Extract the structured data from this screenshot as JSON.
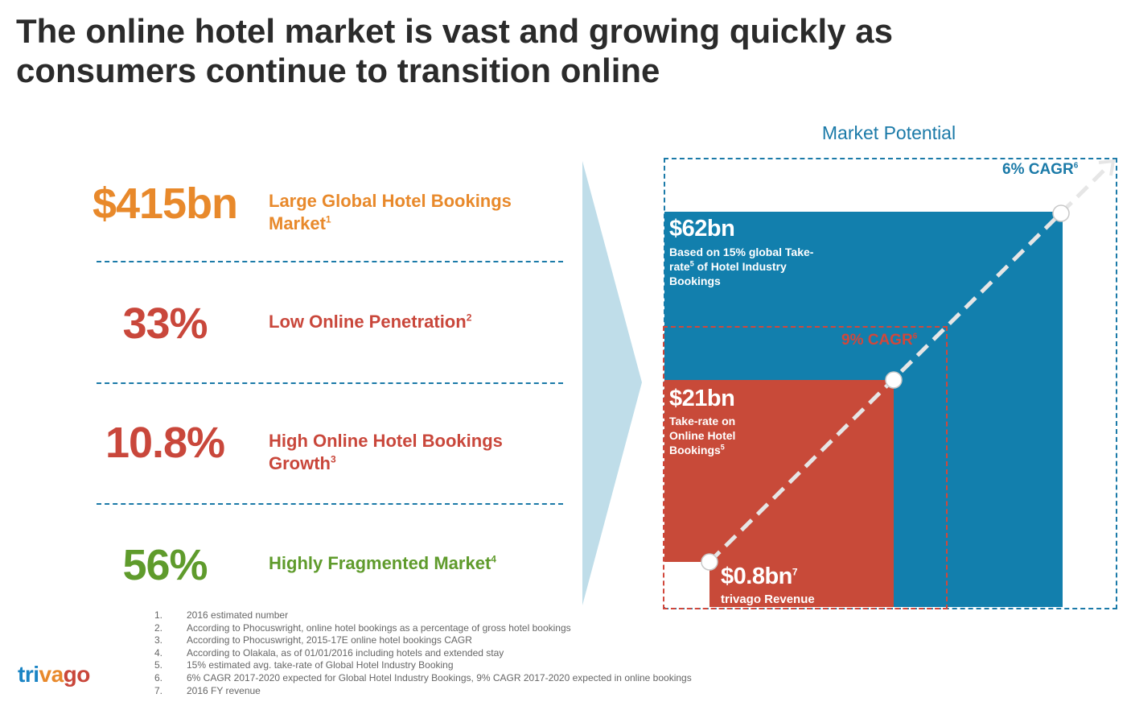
{
  "title": "The online hotel market is vast and growing quickly as consumers continue to transition online",
  "stats": [
    {
      "value": "$415bn",
      "label": "Large Global Hotel Bookings Market",
      "note": "1"
    },
    {
      "value": "33%",
      "label": "Low Online Penetration",
      "note": "2"
    },
    {
      "value": "10.8%",
      "label": "High Online Hotel Bookings Growth",
      "note": "3"
    },
    {
      "value": "56%",
      "label": "Highly Fragmented Market",
      "note": "4"
    }
  ],
  "market": {
    "title": "Market Potential",
    "outer_cagr": "6% CAGR",
    "outer_cagr_note": "6",
    "inner_cagr": "9% CAGR",
    "inner_cagr_note": "6",
    "blue_value": "$62bn",
    "blue_desc_a": "Based on 15% global Take-",
    "blue_desc_b": "rate",
    "blue_desc_b_note": "5",
    "blue_desc_c": " of Hotel Industry",
    "blue_desc_d": "Bookings",
    "red_value": "$21bn",
    "red_desc_a": "Take-rate on",
    "red_desc_b": "Online Hotel",
    "red_desc_c": "Bookings",
    "red_desc_c_note": "5",
    "small_value": "$0.8bn",
    "small_value_note": "7",
    "small_desc": "trivago Revenue"
  },
  "colors": {
    "blue": "#127fad",
    "red": "#c84a39",
    "orange": "#e8892b",
    "green": "#5f9b2c",
    "chevron": "#bfdde9"
  },
  "footnotes": [
    {
      "num": "1.",
      "text": "2016 estimated number"
    },
    {
      "num": "2.",
      "text": "According to Phocuswright, online hotel bookings as a percentage of gross hotel bookings"
    },
    {
      "num": "3.",
      "text": "According to Phocuswright, 2015-17E online hotel bookings CAGR"
    },
    {
      "num": "4.",
      "text": "According to Olakala, as of 01/01/2016 including hotels and extended stay"
    },
    {
      "num": "5.",
      "text": "15% estimated avg. take-rate of Global Hotel Industry Booking"
    },
    {
      "num": "6.",
      "text": "6% CAGR 2017-2020 expected for Global Hotel Industry Bookings, 9% CAGR 2017-2020 expected in online bookings"
    },
    {
      "num": "7.",
      "text": "2016 FY revenue"
    }
  ],
  "logo": {
    "part1": "tri",
    "part2": "va",
    "part3": "go"
  }
}
